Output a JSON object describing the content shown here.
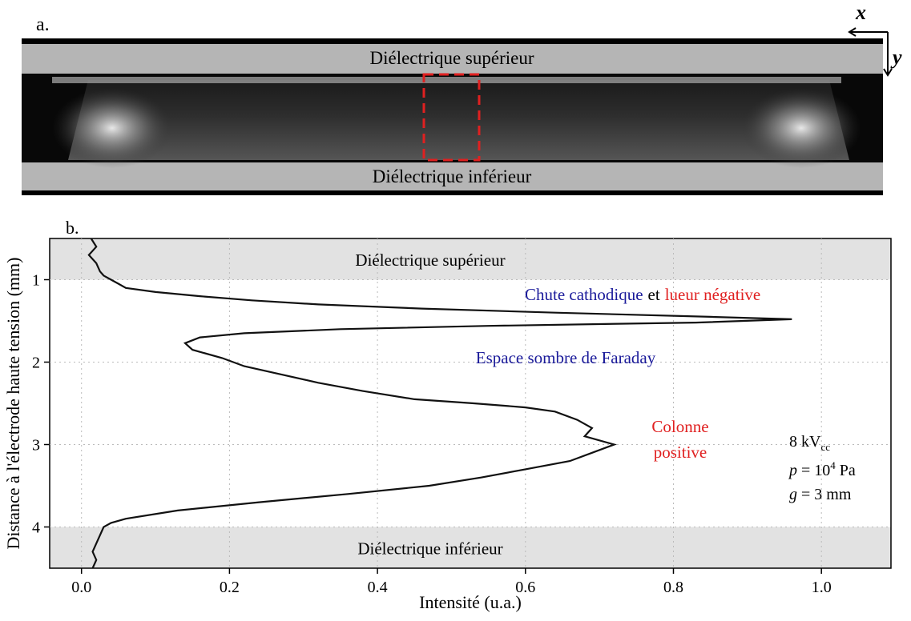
{
  "panel_a": {
    "label": "a.",
    "axis_x": "x",
    "axis_y": "y",
    "top_dielectric": "Diélectrique supérieur",
    "bottom_dielectric": "Diélectrique inférieur"
  },
  "chart_data": {
    "type": "line",
    "panel_label": "b.",
    "xlabel": "Intensité (u.a.)",
    "ylabel": "Distance à l'électrode haute tension (mm)",
    "xlim": [
      -0.043,
      1.094
    ],
    "xticks": [
      {
        "value": 0,
        "label": "0.0"
      },
      0.2,
      0.4,
      0.6,
      0.8,
      {
        "value": 1,
        "label": "1.0"
      }
    ],
    "ylim": [
      0.5,
      4.5
    ],
    "yticks": [
      1,
      2,
      3,
      4
    ],
    "y_inverted": true,
    "color": "#111111",
    "regions": [
      {
        "from": 0.5,
        "to": 1.0,
        "label": "Diélectrique supérieur"
      },
      {
        "from": 4.0,
        "to": 4.5,
        "label": "Diélectrique inférieur"
      }
    ],
    "y": [
      0.5,
      0.6,
      0.7,
      0.8,
      0.9,
      0.95,
      1.0,
      1.05,
      1.1,
      1.15,
      1.2,
      1.25,
      1.3,
      1.35,
      1.4,
      1.45,
      1.48,
      1.52,
      1.56,
      1.6,
      1.65,
      1.7,
      1.77,
      1.85,
      1.95,
      2.05,
      2.15,
      2.25,
      2.35,
      2.45,
      2.5,
      2.55,
      2.6,
      2.7,
      2.8,
      2.9,
      3.0,
      3.1,
      3.2,
      3.3,
      3.4,
      3.5,
      3.6,
      3.7,
      3.8,
      3.9,
      3.95,
      4.0,
      4.1,
      4.2,
      4.3,
      4.4,
      4.5
    ],
    "values": [
      0.013,
      0.02,
      0.01,
      0.02,
      0.025,
      0.03,
      0.04,
      0.05,
      0.06,
      0.1,
      0.16,
      0.23,
      0.32,
      0.46,
      0.64,
      0.85,
      0.96,
      0.83,
      0.55,
      0.35,
      0.22,
      0.16,
      0.14,
      0.15,
      0.19,
      0.22,
      0.27,
      0.32,
      0.38,
      0.45,
      0.53,
      0.6,
      0.64,
      0.67,
      0.69,
      0.68,
      0.72,
      0.69,
      0.66,
      0.6,
      0.54,
      0.47,
      0.36,
      0.24,
      0.13,
      0.06,
      0.04,
      0.03,
      0.025,
      0.02,
      0.015,
      0.02,
      0.015
    ],
    "annotations": {
      "cathode": [
        "Chute cathodique",
        "et",
        "lueur négative"
      ],
      "faraday": "Espace sombre de Faraday",
      "column": [
        "Colonne",
        "positive"
      ]
    },
    "params": {
      "voltage": "8 kV",
      "voltage_sub": "cc",
      "p_var": "p",
      "p_text": " = 10",
      "p_sup": "4",
      "p_unit": " Pa",
      "g_var": "g",
      "g_text": " = 3 mm"
    }
  }
}
